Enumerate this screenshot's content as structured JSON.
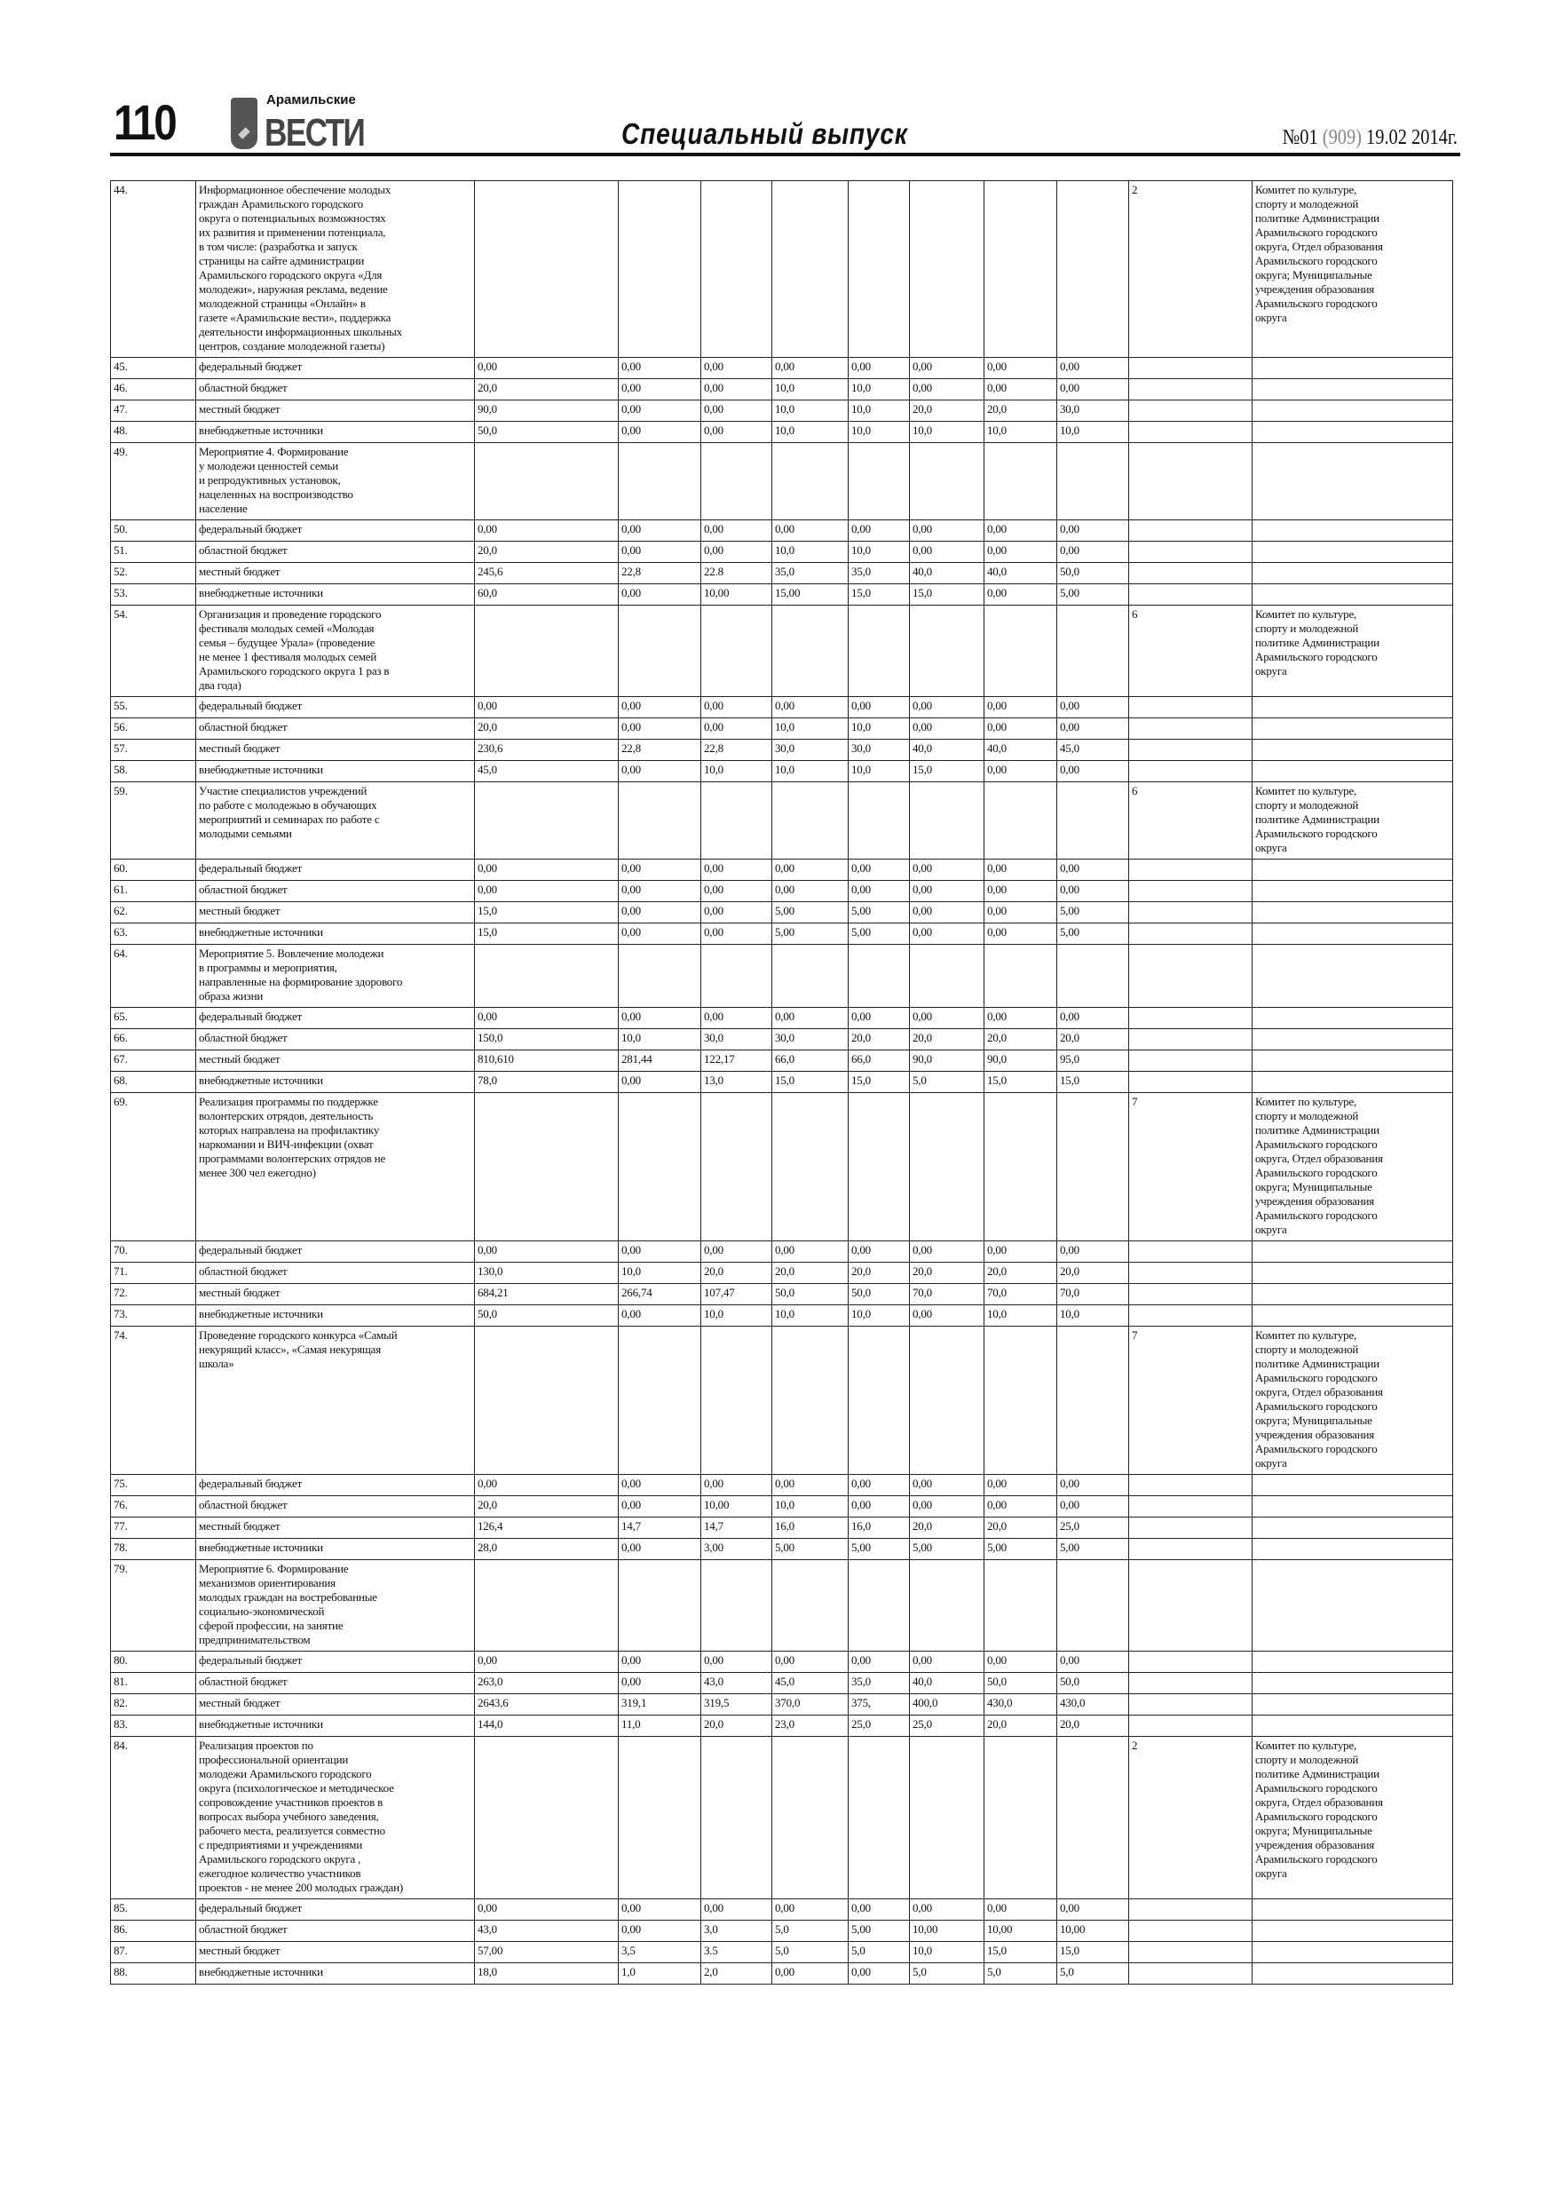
{
  "header": {
    "page_number": "110",
    "logo_small": "Арамильские",
    "logo_big": "ВЕСТИ",
    "section_title": "Специальный выпуск",
    "issue_prefix": "№01 ",
    "issue_total": "(909)",
    "issue_date": " 19.02 2014г."
  },
  "table": {
    "rows": [
      {
        "num": "44.",
        "desc": "Информационное обеспечение молодых\nграждан Арамильского городского\nокруга о потенциальных возможностях\nих развития и применении потенциала,\nв том числе: (разработка и запуск\nстраницы на сайте администрации\nАрамильского городского округа «Для\nмолодежи», наружная реклама, ведение\nмолодежной страницы «Онлайн» в\nгазете «Арамильские вести», поддержка\nдеятельности информационных школьных\nцентров, создание молодежной газеты)",
        "vals": [
          "",
          "",
          "",
          "",
          "",
          "",
          "",
          ""
        ],
        "target": "2",
        "resp": "Комитет по культуре,\nспорту и молодежной\nполитике Администрации\nАрамильского городского\nокруга, Отдел образования\nАрамильского городского\nокруга; Муниципальные\nучреждения образования\nАрамильского городского\nокруга"
      },
      {
        "num": "45.",
        "desc": "федеральный бюджет",
        "vals": [
          "0,00",
          "0,00",
          "0,00",
          "0,00",
          "0,00",
          "0,00",
          "0,00",
          "0,00"
        ],
        "target": "",
        "resp": ""
      },
      {
        "num": "46.",
        "desc": "областной бюджет",
        "vals": [
          "20,0",
          "0,00",
          "0,00",
          "10,0",
          "10,0",
          "0,00",
          "0,00",
          "0,00"
        ],
        "target": "",
        "resp": ""
      },
      {
        "num": "47.",
        "desc": "местный бюджет",
        "vals": [
          "90,0",
          "0,00",
          "0,00",
          "10,0",
          "10,0",
          "20,0",
          "20,0",
          "30,0"
        ],
        "target": "",
        "resp": ""
      },
      {
        "num": "48.",
        "desc": "внебюджетные источники",
        "vals": [
          "50,0",
          "0,00",
          "0,00",
          "10,0",
          "10,0",
          "10,0",
          "10,0",
          "10,0"
        ],
        "target": "",
        "resp": ""
      },
      {
        "num": "49.",
        "desc": "Мероприятие 4. Формирование\nу молодежи ценностей семьи\nи репродуктивных установок,\nнацеленных на воспроизводство\nнаселение",
        "vals": [
          "",
          "",
          "",
          "",
          "",
          "",
          "",
          ""
        ],
        "target": "",
        "resp": ""
      },
      {
        "num": "50.",
        "desc": "федеральный бюджет",
        "vals": [
          "0,00",
          "0,00",
          "0,00",
          "0,00",
          "0,00",
          "0,00",
          "0,00",
          "0,00"
        ],
        "target": "",
        "resp": ""
      },
      {
        "num": "51.",
        "desc": "областной бюджет",
        "vals": [
          "20,0",
          "0,00",
          "0,00",
          "10,0",
          "10,0",
          "0,00",
          "0,00",
          "0,00"
        ],
        "target": "",
        "resp": ""
      },
      {
        "num": "52.",
        "desc": "местный бюджет",
        "vals": [
          "245,6",
          "22,8",
          "22.8",
          "35,0",
          "35,0",
          "40,0",
          "40,0",
          "50,0"
        ],
        "target": "",
        "resp": ""
      },
      {
        "num": "53.",
        "desc": "внебюджетные источники",
        "vals": [
          "60,0",
          "0,00",
          "10,00",
          "15,00",
          "15,0",
          "15,0",
          "0,00",
          "5,00"
        ],
        "target": "",
        "resp": ""
      },
      {
        "num": "54.",
        "desc": "Организация и проведение городского\nфестиваля молодых семей  «Молодая\nсемья – будущее Урала»  (проведение\nне менее 1  фестиваля молодых семей\nАрамильского городского округа 1 раз в\nдва года)",
        "vals": [
          "",
          "",
          "",
          "",
          "",
          "",
          "",
          ""
        ],
        "target": "6",
        "resp": "Комитет по культуре,\nспорту и молодежной\nполитике Администрации\nАрамильского городского\nокруга"
      },
      {
        "num": "55.",
        "desc": "федеральный бюджет",
        "vals": [
          "0,00",
          "0,00",
          "0,00",
          "0,00",
          "0,00",
          "0,00",
          "0,00",
          "0,00"
        ],
        "target": "",
        "resp": ""
      },
      {
        "num": "56.",
        "desc": "областной бюджет",
        "vals": [
          "20,0",
          "0,00",
          "0,00",
          "10,0",
          "10,0",
          "0,00",
          "0,00",
          "0,00"
        ],
        "target": "",
        "resp": ""
      },
      {
        "num": "57.",
        "desc": "местный бюджет",
        "vals": [
          "230,6",
          "22,8",
          "22,8",
          "30,0",
          "30,0",
          "40,0",
          "40,0",
          "45,0"
        ],
        "target": "",
        "resp": ""
      },
      {
        "num": "58.",
        "desc": "внебюджетные источники",
        "vals": [
          "45,0",
          "0,00",
          "10,0",
          "10,0",
          "10,0",
          "15,0",
          "0,00",
          "0,00"
        ],
        "target": "",
        "resp": ""
      },
      {
        "num": "59.",
        "desc": "Участие специалистов учреждений\nпо работе с молодежью в обучающих\nмероприятий и семинарах по работе с\nмолодыми семьями",
        "vals": [
          "",
          "",
          "",
          "",
          "",
          "",
          "",
          ""
        ],
        "target": "6",
        "resp": "Комитет по культуре,\nспорту и молодежной\nполитике Администрации\nАрамильского городского\nокруга"
      },
      {
        "num": "60.",
        "desc": "федеральный бюджет",
        "vals": [
          "0,00",
          "0,00",
          "0,00",
          "0,00",
          "0,00",
          "0,00",
          "0,00",
          "0,00"
        ],
        "target": "",
        "resp": ""
      },
      {
        "num": "61.",
        "desc": "областной бюджет",
        "vals": [
          "0,00",
          "0,00",
          "0,00",
          "0,00",
          "0,00",
          "0,00",
          "0,00",
          "0,00"
        ],
        "target": "",
        "resp": ""
      },
      {
        "num": "62.",
        "desc": "местный бюджет",
        "vals": [
          "15,0",
          "0,00",
          "0,00",
          "5,00",
          "5,00",
          "0,00",
          "0,00",
          "5,00"
        ],
        "target": "",
        "resp": ""
      },
      {
        "num": "63.",
        "desc": "внебюджетные источники",
        "vals": [
          "15,0",
          "0,00",
          "0,00",
          "5,00",
          "5,00",
          "0,00",
          "0,00",
          "5,00"
        ],
        "target": "",
        "resp": ""
      },
      {
        "num": "64.",
        "desc": "Мероприятие 5. Вовлечение молодежи\nв программы и мероприятия,\nнаправленные на формирование здорового\nобраза жизни",
        "vals": [
          "",
          "",
          "",
          "",
          "",
          "",
          "",
          ""
        ],
        "target": "",
        "resp": ""
      },
      {
        "num": "65.",
        "desc": "федеральный бюджет",
        "vals": [
          "0,00",
          "0,00",
          "0,00",
          "0,00",
          "0,00",
          "0,00",
          "0,00",
          "0,00"
        ],
        "target": "",
        "resp": ""
      },
      {
        "num": "66.",
        "desc": "областной бюджет",
        "vals": [
          "150,0",
          "10,0",
          "30,0",
          "30,0",
          "20,0",
          "20,0",
          "20,0",
          "20,0"
        ],
        "target": "",
        "resp": ""
      },
      {
        "num": "67.",
        "desc": "местный бюджет",
        "vals": [
          "810,610",
          "281,44",
          "122,17",
          "66,0",
          "66,0",
          "90,0",
          "90,0",
          "95,0"
        ],
        "target": "",
        "resp": ""
      },
      {
        "num": "68.",
        "desc": "внебюджетные источники",
        "vals": [
          "78,0",
          "0,00",
          "13,0",
          "15,0",
          "15,0",
          "5,0",
          "15,0",
          "15,0"
        ],
        "target": "",
        "resp": ""
      },
      {
        "num": "69.",
        "desc": "Реализация программы по поддержке\nволонтерских отрядов, деятельность\nкоторых направлена на профилактику\nнаркомании и ВИЧ-инфекции     (охват\nпрограммами волонтерских отрядов  не\nменее 300 чел  ежегодно)",
        "vals": [
          "",
          "",
          "",
          "",
          "",
          "",
          "",
          ""
        ],
        "target": "7",
        "resp": "Комитет по культуре,\nспорту и молодежной\nполитике Администрации\nАрамильского городского\nокруга, Отдел образования\nАрамильского городского\nокруга; Муниципальные\nучреждения образования\nАрамильского городского\nокруга"
      },
      {
        "num": "70.",
        "desc": "федеральный бюджет",
        "vals": [
          "0,00",
          "0,00",
          "0,00",
          "0,00",
          "0,00",
          "0,00",
          "0,00",
          "0,00"
        ],
        "target": "",
        "resp": ""
      },
      {
        "num": "71.",
        "desc": "областной бюджет",
        "vals": [
          "130,0",
          "10,0",
          "20,0",
          "20,0",
          "20,0",
          "20,0",
          "20,0",
          "20,0"
        ],
        "target": "",
        "resp": ""
      },
      {
        "num": "72.",
        "desc": "местный бюджет",
        "vals": [
          "684,21",
          "266,74",
          "107,47",
          "50,0",
          "50,0",
          "70,0",
          "70,0",
          "70,0"
        ],
        "target": "",
        "resp": ""
      },
      {
        "num": "73.",
        "desc": "внебюджетные источники",
        "vals": [
          "50,0",
          "0,00",
          "10,0",
          "10,0",
          "10,0",
          "0,00",
          "10,0",
          "10,0"
        ],
        "target": "",
        "resp": ""
      },
      {
        "num": "74.",
        "desc": "Проведение городского конкурса «Самый\nнекурящий класс», «Самая некурящая\nшкола»",
        "vals": [
          "",
          "",
          "",
          "",
          "",
          "",
          "",
          ""
        ],
        "target": "7",
        "resp": "Комитет по культуре,\nспорту и молодежной\nполитике Администрации\nАрамильского городского\nокруга, Отдел образования\nАрамильского городского\nокруга; Муниципальные\nучреждения образования\nАрамильского городского\nокруга"
      },
      {
        "num": "75.",
        "desc": "федеральный бюджет",
        "vals": [
          "0,00",
          "0,00",
          "0,00",
          "0,00",
          "0,00",
          "0,00",
          "0,00",
          "0,00"
        ],
        "target": "",
        "resp": ""
      },
      {
        "num": "76.",
        "desc": "областной бюджет",
        "vals": [
          "20,0",
          "0,00",
          "10,00",
          "10,0",
          "0,00",
          "0,00",
          "0,00",
          "0,00"
        ],
        "target": "",
        "resp": ""
      },
      {
        "num": "77.",
        "desc": "местный бюджет",
        "vals": [
          "126,4",
          "14,7",
          "14,7",
          "16,0",
          "16,0",
          "20,0",
          "20,0",
          "25,0"
        ],
        "target": "",
        "resp": ""
      },
      {
        "num": "78.",
        "desc": "внебюджетные источники",
        "vals": [
          "28,0",
          "0,00",
          "3,00",
          "5,00",
          "5,00",
          "5,00",
          "5,00",
          "5,00"
        ],
        "target": "",
        "resp": ""
      },
      {
        "num": "79.",
        "desc": "Мероприятие 6. Формирование\nмеханизмов ориентирования\nмолодых граждан на востребованные\nсоциально-экономической\nсферой профессии, на занятие\nпредпринимательством",
        "vals": [
          "",
          "",
          "",
          "",
          "",
          "",
          "",
          ""
        ],
        "target": "",
        "resp": ""
      },
      {
        "num": "80.",
        "desc": "федеральный бюджет",
        "vals": [
          "0,00",
          "0,00",
          "0,00",
          "0,00",
          "0,00",
          "0,00",
          "0,00",
          "0,00"
        ],
        "target": "",
        "resp": ""
      },
      {
        "num": "81.",
        "desc": "областной бюджет",
        "vals": [
          "263,0",
          "0,00",
          "43,0",
          "45,0",
          "35,0",
          "40,0",
          "50,0",
          "50,0"
        ],
        "target": "",
        "resp": ""
      },
      {
        "num": "82.",
        "desc": "местный бюджет",
        "vals": [
          "2643,6",
          "319,1",
          "319,5",
          "370,0",
          "375,",
          "400,0",
          "430,0",
          "430,0"
        ],
        "target": "",
        "resp": ""
      },
      {
        "num": "83.",
        "desc": "внебюджетные источники",
        "vals": [
          "144,0",
          "11,0",
          "20,0",
          "23,0",
          "25,0",
          "25,0",
          "20,0",
          "20,0"
        ],
        "target": "",
        "resp": ""
      },
      {
        "num": "84.",
        "desc": "Реализация проектов по\nпрофессиональной ориентации\nмолодежи  Арамильского городского\nокруга (психологическое и методическое\nсопровождение участников проектов в\nвопросах выбора учебного заведения,\nрабочего места, реализуется совместно\nс  предприятиями и учреждениями\nАрамильского городского округа ,\nежегодное количество участников\nпроектов - не менее 200 молодых граждан)",
        "vals": [
          "",
          "",
          "",
          "",
          "",
          "",
          "",
          ""
        ],
        "target": "2",
        "resp": "Комитет по культуре,\nспорту и молодежной\nполитике Администрации\nАрамильского городского\nокруга, Отдел образования\nАрамильского городского\nокруга; Муниципальные\nучреждения образования\nАрамильского городского\nокруга"
      },
      {
        "num": "85.",
        "desc": "федеральный бюджет",
        "vals": [
          "0,00",
          "0,00",
          "0,00",
          "0,00",
          "0,00",
          "0,00",
          "0,00",
          "0,00"
        ],
        "target": "",
        "resp": ""
      },
      {
        "num": "86.",
        "desc": "областной бюджет",
        "vals": [
          "43,0",
          "0,00",
          "3,0",
          "5,0",
          "5,00",
          "10,00",
          "10,00",
          "10,00"
        ],
        "target": "",
        "resp": ""
      },
      {
        "num": "87.",
        "desc": "местный бюджет",
        "vals": [
          "57,00",
          "3,5",
          "3.5",
          "5,0",
          "5,0",
          "10,0",
          "15,0",
          "15,0"
        ],
        "target": "",
        "resp": ""
      },
      {
        "num": "88.",
        "desc": "внебюджетные источники",
        "vals": [
          "18,0",
          "1,0",
          "2,0",
          "0,00",
          "0,00",
          "5,0",
          "5,0",
          "5,0"
        ],
        "target": "",
        "resp": ""
      }
    ]
  }
}
